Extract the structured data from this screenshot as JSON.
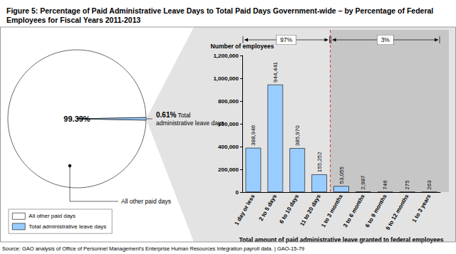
{
  "title": "Figure 5: Percentage of Paid Administrative Leave Days to Total Paid Days Government-wide – by Percentage of Federal Employees for Fiscal Years 2011-2013",
  "source": "Source: GAO analysis of Office of Personnel Management's Enterprise Human Resources Integration payroll data. | GAO-15-79",
  "chart_data": [
    {
      "type": "pie",
      "categories": [
        "All other paid days",
        "Total administrative leave days"
      ],
      "values": [
        99.39,
        0.61
      ],
      "value_labels": [
        "99.39%",
        "0.61%"
      ],
      "colors": [
        "#ffffff",
        "#99ccff"
      ],
      "legend": "lower left",
      "data_labels": true
    },
    {
      "type": "bar",
      "categories": [
        "1 day or less",
        "2 to 5 days",
        "6 to 10 days",
        "11 to 20 days",
        "1 to 3 months",
        "3 to 6 months",
        "6 to 9 months",
        "9 to 12 months",
        "1 to 3 years"
      ],
      "values": [
        388946,
        944441,
        385970,
        155252,
        53055,
        2987,
        746,
        275,
        263
      ],
      "value_labels": [
        "388,946",
        "944,441",
        "385,970",
        "155,252",
        "53,055",
        "2,987",
        "746",
        "275",
        "263"
      ],
      "color": "#99ccff",
      "ylabel": "Number of employees",
      "xlabel": "Total amount of paid administrative leave granted to federal employees",
      "ylim": [
        0,
        1200000
      ],
      "yticks": [
        0,
        {
          "value": 200000,
          "label": "200,000"
        },
        {
          "value": 400000,
          "label": "400,000"
        },
        {
          "value": 600000,
          "label": "600,000"
        },
        {
          "value": 800000,
          "label": "800,000"
        },
        {
          "value": 1000000,
          "label": "1,000,000"
        },
        {
          "value": 1200000,
          "label": "1,200,000"
        }
      ],
      "grid": false,
      "data_labels": true,
      "annotations": [
        {
          "text": "97%",
          "from": "1 day or less",
          "to": "11 to 20 days"
        },
        {
          "text": "3%",
          "from": "1 to 3 months",
          "to": "1 to 3 years"
        }
      ]
    }
  ]
}
